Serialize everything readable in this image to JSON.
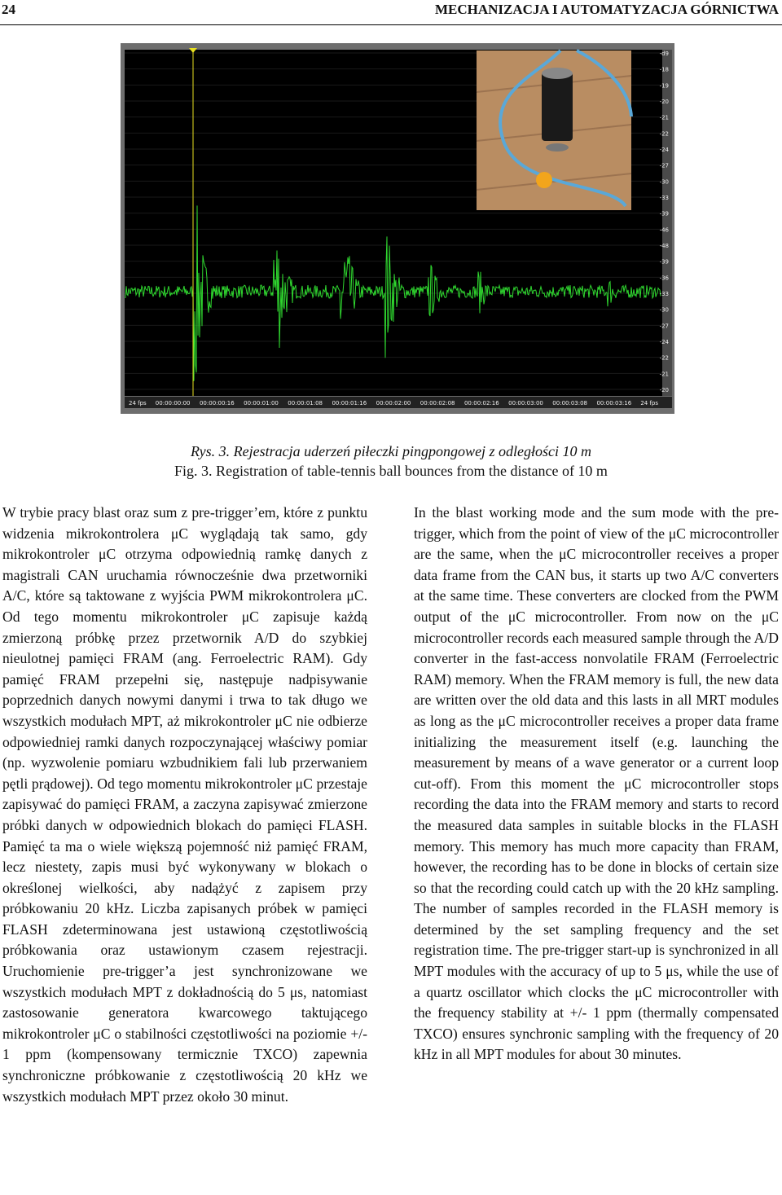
{
  "header": {
    "page_number": "24",
    "journal": "MECHANIZACJA I AUTOMATYZACJA GÓRNICTWA"
  },
  "figure": {
    "scale_labels": [
      "-d9",
      "-18",
      "-19",
      "-20",
      "-21",
      "-22",
      "-24",
      "-27",
      "-30",
      "-33",
      "-39",
      "-46",
      "-48",
      "-39",
      "-36",
      "-33",
      "-30",
      "-27",
      "-24",
      "-22",
      "-21",
      "-20"
    ],
    "time_labels": [
      "24 fps",
      "00:00:00:00",
      "00:00:00:16",
      "00:00:01:00",
      "00:00:01:08",
      "00:00:01:16",
      "00:00:02:00",
      "00:00:02:08",
      "00:00:02:16",
      "00:00:03:00",
      "00:00:03:08",
      "00:00:03:16",
      "24 fps"
    ],
    "caption_pl": "Rys. 3. Rejestracja uderzeń piłeczki pingpongowej z odległości 10 m",
    "caption_en": "Fig. 3. Registration of table-tennis ball bounces from the distance of 10 m"
  },
  "body": {
    "left": "W trybie pracy blast oraz sum z pre-trigger’em, które z punktu widzenia mikrokontrolera μC wyglądają tak samo, gdy mikrokontroler μC otrzyma odpowiednią ramkę danych z magistrali CAN uruchamia równocześnie dwa przetworniki A/C, które są taktowane z wyjścia PWM mikrokontrolera μC. Od tego momentu mikrokontroler μC zapisuje każdą zmierzoną próbkę przez przetwornik A/D do szybkiej nieulotnej pamięci FRAM (ang. Ferroelectric RAM). Gdy pamięć FRAM przepełni się, następuje nadpisywanie poprzednich danych nowymi danymi i trwa to tak długo we wszystkich modułach MPT, aż mikrokontroler μC nie odbierze odpowiedniej ramki danych rozpoczynającej właściwy pomiar (np. wyzwolenie pomiaru wzbudnikiem fali lub przerwaniem pętli prądowej). Od tego momentu mikrokontroler μC przestaje zapisywać do pamięci FRAM, a zaczyna zapisywać zmierzone próbki danych w odpowiednich blokach do pamięci FLASH. Pamięć ta ma o wiele większą pojemność niż pamięć FRAM, lecz niestety, zapis musi być wykonywany w blokach o określonej wielkości, aby nadążyć z zapisem przy próbkowaniu 20 kHz. Liczba zapisanych próbek w pamięci FLASH zdeterminowana jest ustawioną częstotliwością próbkowania oraz ustawionym czasem rejestracji. Uruchomienie pre-trigger’a jest synchronizowane we wszystkich modułach MPT z dokładnością do 5 μs, natomiast zastosowanie generatora kwarcowego taktującego mikrokontroler μC o stabilności częstotliwości na poziomie +/- 1 ppm (kompensowany termicznie TXCO) zapewnia synchroniczne próbkowanie z częstotliwością 20 kHz we wszystkich modułach MPT przez około 30 minut.",
    "right": "In the blast working mode and the sum mode with the pre-trigger, which from the point of view of the μC microcontroller are the same, when the μC microcontroller receives a proper data frame from the CAN bus, it starts up two A/C converters at the same time. These converters are clocked from the PWM output of the μC microcontroller. From now on the μC microcontroller records each measured sample through the A/D converter in the fast-access nonvolatile FRAM (Ferroelectric RAM) memory. When the FRAM memory is full, the new data are written over the old data and this lasts in all MRT modules as long as the μC microcontroller receives a proper data frame initializing the measurement itself (e.g. launching the measurement by means of a wave generator or a current loop cut-off). From this moment the μC microcontroller stops recording the data into the FRAM memory and starts to record the measured data samples in suitable blocks in the FLASH memory. This memory has much more capacity than FRAM, however, the recording has to be done in blocks of certain size so that the recording could catch up with the 20 kHz sampling. The number of samples recorded in the FLASH memory is determined by the set sampling frequency and the set registration time. The pre-trigger start-up is synchronized in all MPT modules with the accuracy of up to 5 μs, while the use of a quartz oscillator which clocks the μC microcontroller with the frequency stability at +/- 1 ppm (thermally compensated TXCO) ensures synchronic sampling with the frequency of 20 kHz in all MPT modules for about 30 minutes."
  }
}
